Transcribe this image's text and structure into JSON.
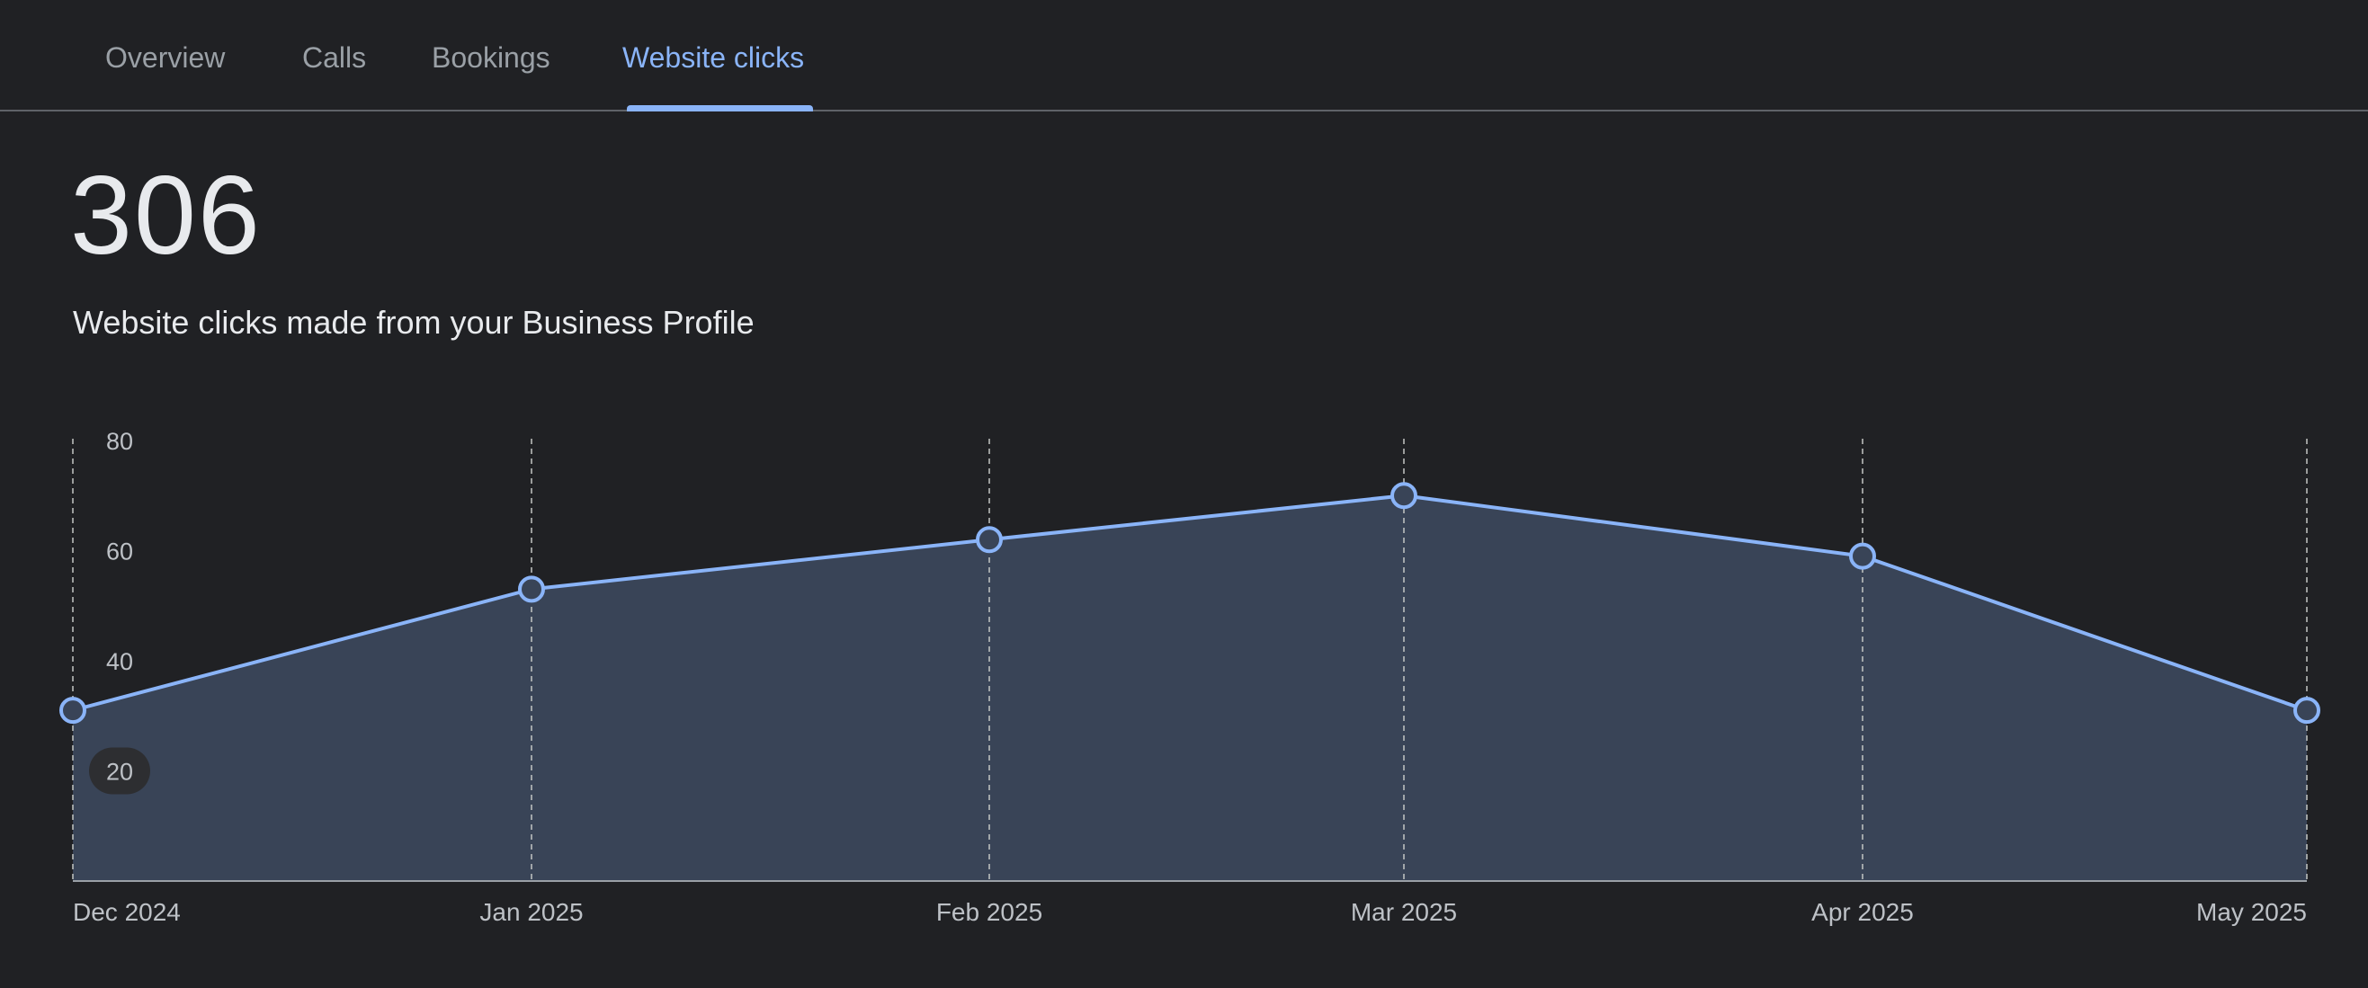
{
  "tabs": [
    {
      "label": "Overview",
      "active": false
    },
    {
      "label": "Calls",
      "active": false
    },
    {
      "label": "Bookings",
      "active": false
    },
    {
      "label": "Website clicks",
      "active": true
    }
  ],
  "summary": {
    "total": "306",
    "description": "Website clicks made from your Business Profile"
  },
  "colors": {
    "accent": "#8ab4f8",
    "area_fill": "#394457",
    "background": "#202124"
  },
  "chart_data": {
    "type": "area",
    "x": [
      "Dec 2024",
      "Jan 2025",
      "Feb 2025",
      "Mar 2025",
      "Apr 2025",
      "May 2025"
    ],
    "series": [
      {
        "values": [
          31,
          53,
          62,
          70,
          59,
          31
        ]
      }
    ],
    "yticks": [
      20,
      40,
      60,
      80
    ],
    "ylim": [
      0,
      80
    ],
    "highlighted_ytick": 20,
    "grid": "vertical dashed"
  }
}
